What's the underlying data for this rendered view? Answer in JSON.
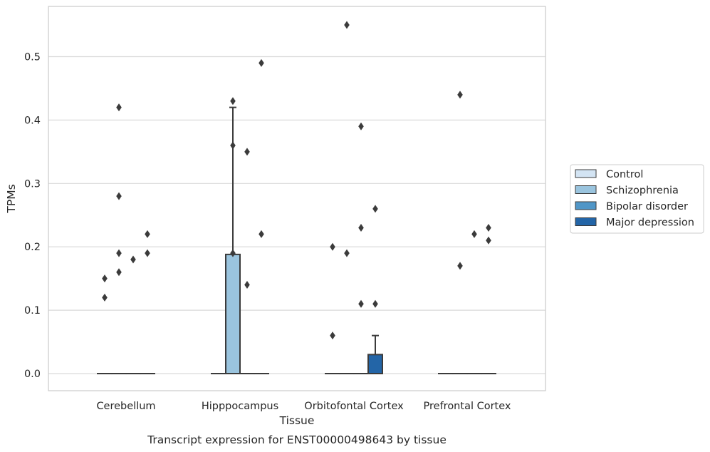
{
  "caption": "Transcript expression for ENST00000498643 by tissue",
  "chart_data": {
    "type": "box",
    "xlabel": "Tissue",
    "ylabel": "TPMs",
    "ylim": [
      -0.027,
      0.583
    ],
    "yticks": [
      0.0,
      0.1,
      0.2,
      0.3,
      0.4,
      0.5
    ],
    "ytick_labels": [
      "0.0",
      "0.1",
      "0.2",
      "0.3",
      "0.4",
      "0.5"
    ],
    "grid": "horizontal",
    "legend_position": "right",
    "categories": [
      "Cerebellum",
      "Hipppocampus",
      "Orbitofontal Cortex",
      "Prefrontal Cortex"
    ],
    "series": [
      {
        "name": "Control",
        "color": "#d3e4f3",
        "boxes": [
          {
            "category": "Cerebellum",
            "q1": 0,
            "median": 0,
            "q3": 0,
            "whisker_low": 0,
            "whisker_high": 0,
            "outliers": [
              0.12,
              0.15
            ]
          },
          {
            "category": "Hipppocampus",
            "q1": 0,
            "median": 0,
            "q3": 0,
            "whisker_low": 0,
            "whisker_high": 0,
            "outliers": []
          },
          {
            "category": "Orbitofontal Cortex",
            "q1": 0,
            "median": 0,
            "q3": 0,
            "whisker_low": 0,
            "whisker_high": 0,
            "outliers": [
              0.06,
              0.2
            ]
          },
          {
            "category": "Prefrontal Cortex",
            "q1": 0,
            "median": 0,
            "q3": 0,
            "whisker_low": 0,
            "whisker_high": 0,
            "outliers": []
          }
        ]
      },
      {
        "name": "Schizophrenia",
        "color": "#9ac4de",
        "boxes": [
          {
            "category": "Cerebellum",
            "q1": 0,
            "median": 0,
            "q3": 0,
            "whisker_low": 0,
            "whisker_high": 0,
            "outliers": [
              0.42,
              0.28,
              0.19,
              0.16
            ]
          },
          {
            "category": "Hipppocampus",
            "q1": 0,
            "median": 0,
            "q3": 0.188,
            "whisker_low": 0,
            "whisker_high": 0.42,
            "outliers": [
              0.43,
              0.36,
              0.19
            ]
          },
          {
            "category": "Orbitofontal Cortex",
            "q1": 0,
            "median": 0,
            "q3": 0,
            "whisker_low": 0,
            "whisker_high": 0,
            "outliers": [
              0.55,
              0.19
            ]
          },
          {
            "category": "Prefrontal Cortex",
            "q1": 0,
            "median": 0,
            "q3": 0,
            "whisker_low": 0,
            "whisker_high": 0,
            "outliers": [
              0.44,
              0.17
            ]
          }
        ]
      },
      {
        "name": "Bipolar disorder",
        "color": "#5096c7",
        "boxes": [
          {
            "category": "Cerebellum",
            "q1": 0,
            "median": 0,
            "q3": 0,
            "whisker_low": 0,
            "whisker_high": 0,
            "outliers": [
              0.18
            ]
          },
          {
            "category": "Hipppocampus",
            "q1": 0,
            "median": 0,
            "q3": 0,
            "whisker_low": 0,
            "whisker_high": 0,
            "outliers": [
              0.35,
              0.14
            ]
          },
          {
            "category": "Orbitofontal Cortex",
            "q1": 0,
            "median": 0,
            "q3": 0,
            "whisker_low": 0,
            "whisker_high": 0,
            "outliers": [
              0.39,
              0.23,
              0.11
            ]
          },
          {
            "category": "Prefrontal Cortex",
            "q1": 0,
            "median": 0,
            "q3": 0,
            "whisker_low": 0,
            "whisker_high": 0,
            "outliers": [
              0.22
            ]
          }
        ]
      },
      {
        "name": "Major depression",
        "color": "#2365a7",
        "boxes": [
          {
            "category": "Cerebellum",
            "q1": 0,
            "median": 0,
            "q3": 0,
            "whisker_low": 0,
            "whisker_high": 0,
            "outliers": [
              0.22,
              0.19
            ]
          },
          {
            "category": "Hipppocampus",
            "q1": 0,
            "median": 0,
            "q3": 0,
            "whisker_low": 0,
            "whisker_high": 0,
            "outliers": [
              0.49,
              0.22
            ]
          },
          {
            "category": "Orbitofontal Cortex",
            "q1": 0,
            "median": 0,
            "q3": 0.03,
            "whisker_low": 0,
            "whisker_high": 0.06,
            "outliers": [
              0.26,
              0.11
            ]
          },
          {
            "category": "Prefrontal Cortex",
            "q1": 0,
            "median": 0,
            "q3": 0,
            "whisker_low": 0,
            "whisker_high": 0,
            "outliers": [
              0.21,
              0.23
            ]
          }
        ]
      }
    ]
  }
}
